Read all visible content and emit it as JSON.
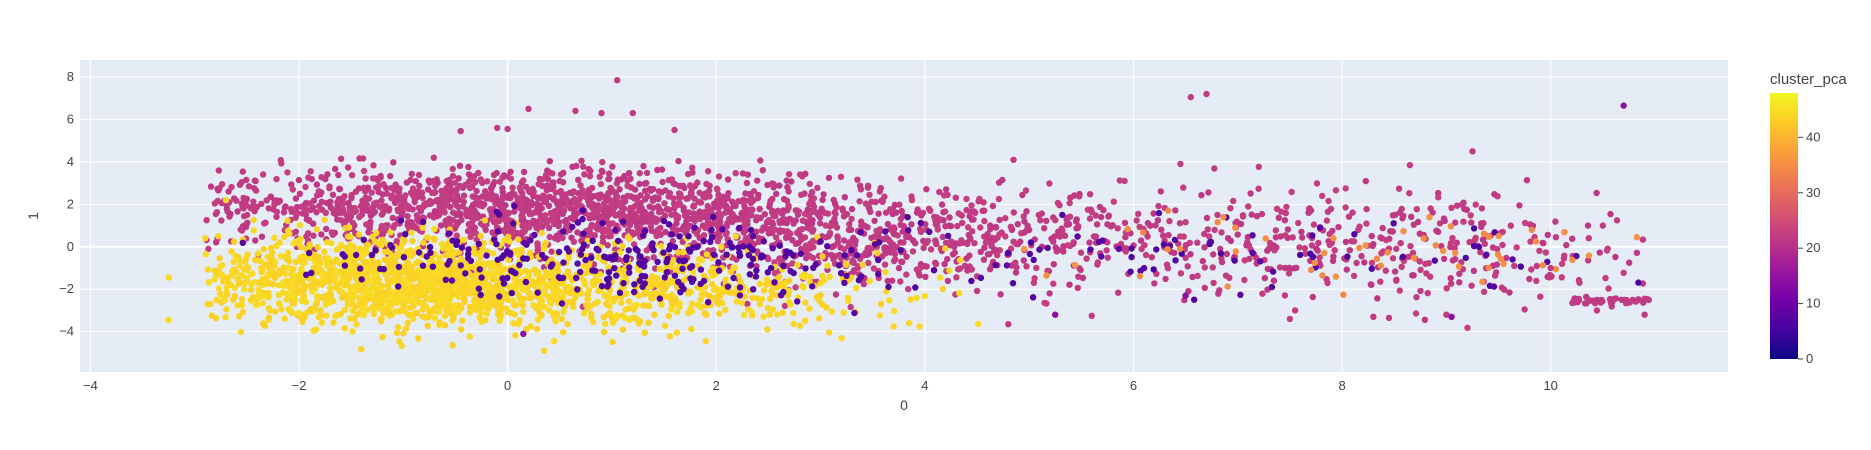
{
  "chart_data": {
    "type": "scatter",
    "xlabel": "0",
    "ylabel": "1",
    "xlim": [
      -4.1,
      11.7
    ],
    "ylim": [
      -5.9,
      8.8
    ],
    "x_ticks": [
      "−4",
      "−2",
      "0",
      "2",
      "4",
      "6",
      "8",
      "10"
    ],
    "x_tick_values": [
      -4,
      -2,
      0,
      2,
      4,
      6,
      8,
      10
    ],
    "y_ticks": [
      "−4",
      "−2",
      "0",
      "2",
      "4",
      "6",
      "8"
    ],
    "y_tick_values": [
      -4,
      -2,
      0,
      2,
      4,
      6,
      8
    ],
    "grid": true,
    "plot_bg": "#e5ecf6",
    "colorbar": {
      "title": "cluster_pca",
      "range": [
        0,
        48
      ],
      "ticks": [
        "0",
        "10",
        "20",
        "30",
        "40"
      ],
      "tick_values": [
        0,
        10,
        20,
        30,
        40
      ],
      "colorscale": [
        "#0d0887",
        "#46039f",
        "#7201a8",
        "#9c179e",
        "#bd3786",
        "#d8576b",
        "#ed7953",
        "#fb9f3a",
        "#fdca26",
        "#f0f921"
      ]
    },
    "groups": [
      {
        "cluster": 22,
        "center": [
          0.2,
          1.8
        ],
        "spread": [
          1.6,
          0.9
        ],
        "count": 1400
      },
      {
        "cluster": 22,
        "center": [
          3.2,
          0.3
        ],
        "spread": [
          1.3,
          1.1
        ],
        "count": 600
      },
      {
        "cluster": 22,
        "center": [
          6.5,
          0.4
        ],
        "spread": [
          1.5,
          1.2
        ],
        "count": 330
      },
      {
        "cluster": 22,
        "center": [
          9.0,
          0.0
        ],
        "spread": [
          1.0,
          1.3
        ],
        "count": 180
      },
      {
        "cluster": 44,
        "center": [
          -1.1,
          -1.6
        ],
        "spread": [
          0.9,
          1.0
        ],
        "count": 1300
      },
      {
        "cluster": 44,
        "center": [
          1.2,
          -2.0
        ],
        "spread": [
          1.2,
          0.9
        ],
        "count": 600
      },
      {
        "cluster": 7,
        "center": [
          0.9,
          -0.5
        ],
        "spread": [
          1.3,
          0.9
        ],
        "count": 260
      },
      {
        "cluster": 7,
        "center": [
          6.0,
          -0.5
        ],
        "spread": [
          2.3,
          1.0
        ],
        "count": 90
      },
      {
        "cluster": 35,
        "center": [
          8.2,
          -0.3
        ],
        "spread": [
          1.5,
          0.8
        ],
        "count": 50
      }
    ],
    "points": [
      {
        "x": 1.05,
        "y": 7.85,
        "cluster": 22
      },
      {
        "x": 6.55,
        "y": 7.05,
        "cluster": 22
      },
      {
        "x": 6.7,
        "y": 7.2,
        "cluster": 22
      },
      {
        "x": 10.7,
        "y": 6.65,
        "cluster": 14
      },
      {
        "x": 0.65,
        "y": 6.4,
        "cluster": 22
      },
      {
        "x": 0.9,
        "y": 6.3,
        "cluster": 22
      },
      {
        "x": 1.2,
        "y": 6.3,
        "cluster": 22
      },
      {
        "x": 0.2,
        "y": 6.5,
        "cluster": 22
      },
      {
        "x": -0.45,
        "y": 5.45,
        "cluster": 22
      },
      {
        "x": -0.1,
        "y": 5.6,
        "cluster": 22
      },
      {
        "x": 0.0,
        "y": 5.55,
        "cluster": 22
      },
      {
        "x": 1.6,
        "y": 5.5,
        "cluster": 22
      },
      {
        "x": 9.25,
        "y": 4.5,
        "cluster": 22
      },
      {
        "x": 4.85,
        "y": 4.1,
        "cluster": 22
      },
      {
        "x": 8.65,
        "y": 3.85,
        "cluster": 22
      },
      {
        "x": 6.45,
        "y": 3.9,
        "cluster": 22
      },
      {
        "x": -3.25,
        "y": -1.45,
        "cluster": 44
      },
      {
        "x": -3.25,
        "y": -3.45,
        "cluster": 44
      },
      {
        "x": -2.9,
        "y": 0.4,
        "cluster": 44
      },
      {
        "x": -2.85,
        "y": -2.7,
        "cluster": 44
      },
      {
        "x": -2.7,
        "y": 2.2,
        "cluster": 44
      },
      {
        "x": 4.8,
        "y": -3.65,
        "cluster": 22
      },
      {
        "x": 5.25,
        "y": -3.2,
        "cluster": 14
      },
      {
        "x": 5.6,
        "y": -3.25,
        "cluster": 22
      },
      {
        "x": 6.5,
        "y": -2.3,
        "cluster": 14
      },
      {
        "x": 7.5,
        "y": -3.4,
        "cluster": 22
      },
      {
        "x": 7.55,
        "y": -3.0,
        "cluster": 22
      },
      {
        "x": 8.3,
        "y": -3.3,
        "cluster": 22
      },
      {
        "x": 8.45,
        "y": -3.35,
        "cluster": 22
      },
      {
        "x": 9.0,
        "y": -3.2,
        "cluster": 22
      },
      {
        "x": 9.05,
        "y": -3.3,
        "cluster": 14
      },
      {
        "x": 9.75,
        "y": -2.95,
        "cluster": 22
      },
      {
        "x": 10.9,
        "y": -3.2,
        "cluster": 22
      },
      {
        "x": 10.05,
        "y": 0.45,
        "cluster": 22
      },
      {
        "x": 10.05,
        "y": -1.05,
        "cluster": 35
      },
      {
        "x": 10.5,
        "y": 1.0,
        "cluster": 22
      },
      {
        "x": 3.7,
        "y": -3.75,
        "cluster": 44
      },
      {
        "x": 3.85,
        "y": -3.6,
        "cluster": 44
      },
      {
        "x": 3.95,
        "y": -3.75,
        "cluster": 44
      },
      {
        "x": 1.9,
        "y": -4.45,
        "cluster": 44
      },
      {
        "x": 0.35,
        "y": -4.9,
        "cluster": 44
      },
      {
        "x": 0.15,
        "y": -4.1,
        "cluster": 14
      },
      {
        "x": 9.7,
        "y": 1.95,
        "cluster": 22
      },
      {
        "x": 9.55,
        "y": -0.8,
        "cluster": 35
      },
      {
        "x": 9.9,
        "y": -2.35,
        "cluster": 22
      },
      {
        "x": 9.65,
        "y": -0.9,
        "cluster": 22
      },
      {
        "x": 10.0,
        "y": -1.0,
        "cluster": 22
      }
    ],
    "strip": {
      "cluster": 22,
      "x_range": [
        10.2,
        10.95
      ],
      "y": -2.55,
      "count": 45
    }
  }
}
